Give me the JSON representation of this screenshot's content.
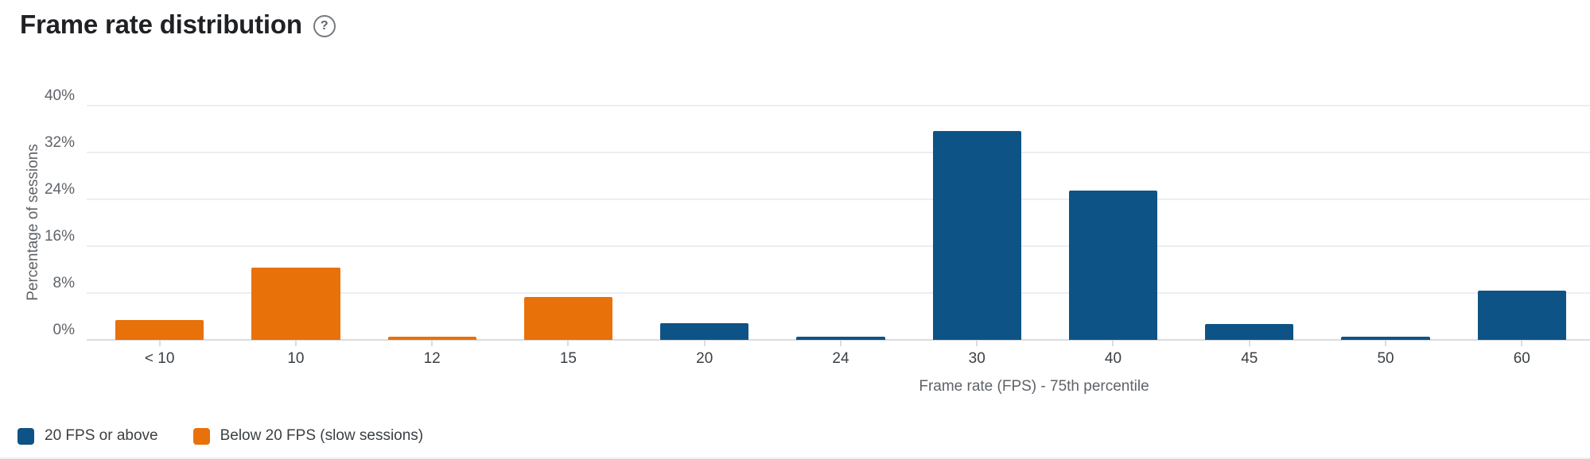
{
  "page": {
    "title": "Frame rate distribution"
  },
  "icons": {
    "help": "?"
  },
  "chart_data": {
    "type": "bar",
    "title": "Frame rate distribution",
    "categories": [
      "< 10",
      "10",
      "12",
      "15",
      "20",
      "24",
      "30",
      "40",
      "45",
      "50",
      "60"
    ],
    "series": [
      {
        "name": "20 FPS or above",
        "color": "#0e5385",
        "values": [
          null,
          null,
          null,
          null,
          2.9,
          0.5,
          35.7,
          25.5,
          2.7,
          0.5,
          8.4
        ]
      },
      {
        "name": "Below 20 FPS (slow sessions)",
        "color": "#e8710a",
        "values": [
          3.4,
          12.3,
          0.5,
          7.3,
          null,
          null,
          null,
          null,
          null,
          null,
          null
        ]
      }
    ],
    "xlabel": "Frame rate (FPS) - 75th percentile",
    "ylabel": "Percentage of sessions",
    "ylim": [
      0,
      40
    ],
    "yticks": [
      "0%",
      "8%",
      "16%",
      "24%",
      "32%",
      "40%"
    ],
    "ytick_step": 8,
    "grid": true,
    "legend_position": "bottom-left"
  },
  "colors": {
    "gridline": "#eceef1",
    "axis_baseline": "#dadce0",
    "title_text": "#202124",
    "axis_text": "#5f6368"
  }
}
